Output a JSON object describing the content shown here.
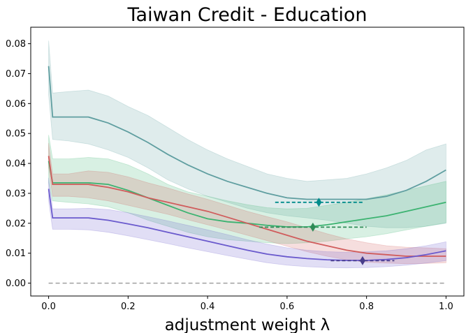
{
  "chart_data": {
    "type": "line",
    "title": "Taiwan Credit - Education",
    "xlabel": "adjustment weight λ",
    "ylabel": "",
    "xlim": [
      -0.045,
      1.045
    ],
    "ylim": [
      -0.0043,
      0.0855
    ],
    "xticks": [
      "0.0",
      "0.2",
      "0.4",
      "0.6",
      "0.8",
      "1.0"
    ],
    "xtick_values": [
      0.0,
      0.2,
      0.4,
      0.6,
      0.8,
      1.0
    ],
    "yticks": [
      "0.00",
      "0.01",
      "0.02",
      "0.03",
      "0.04",
      "0.05",
      "0.06",
      "0.07",
      "0.08"
    ],
    "ytick_values": [
      0.0,
      0.01,
      0.02,
      0.03,
      0.04,
      0.05,
      0.06,
      0.07,
      0.08
    ],
    "grid": false,
    "legend": "none",
    "x": [
      0.0,
      0.01,
      0.05,
      0.1,
      0.15,
      0.2,
      0.25,
      0.3,
      0.35,
      0.4,
      0.45,
      0.5,
      0.55,
      0.6,
      0.65,
      0.7,
      0.75,
      0.8,
      0.85,
      0.9,
      0.95,
      1.0
    ],
    "series": [
      {
        "color": "#5f9ea0",
        "values": [
          0.0725,
          0.0555,
          0.0555,
          0.0555,
          0.0535,
          0.0505,
          0.047,
          0.043,
          0.0395,
          0.0365,
          0.034,
          0.032,
          0.03,
          0.0285,
          0.028,
          0.028,
          0.028,
          0.028,
          0.029,
          0.031,
          0.034,
          0.0378
        ],
        "lower": [
          0.063,
          0.048,
          0.0475,
          0.0465,
          0.0445,
          0.042,
          0.0385,
          0.0345,
          0.0315,
          0.029,
          0.027,
          0.025,
          0.0235,
          0.0225,
          0.0218,
          0.021,
          0.02,
          0.019,
          0.0185,
          0.0185,
          0.019,
          0.02
        ],
        "upper": [
          0.081,
          0.0635,
          0.064,
          0.0645,
          0.0625,
          0.059,
          0.056,
          0.052,
          0.048,
          0.0445,
          0.0415,
          0.039,
          0.0365,
          0.035,
          0.034,
          0.0345,
          0.035,
          0.0365,
          0.0385,
          0.041,
          0.0445,
          0.0465
        ],
        "marker": {
          "x": 0.68,
          "y": 0.027,
          "x_start": 0.57,
          "x_end": 0.79
        }
      },
      {
        "color": "#3cb371",
        "values": [
          0.0408,
          0.0335,
          0.0335,
          0.0335,
          0.033,
          0.031,
          0.0285,
          0.026,
          0.0235,
          0.0215,
          0.0205,
          0.02,
          0.0193,
          0.0188,
          0.0188,
          0.0195,
          0.0205,
          0.0215,
          0.0225,
          0.024,
          0.0255,
          0.027
        ],
        "lower": [
          0.0335,
          0.0275,
          0.027,
          0.0265,
          0.0255,
          0.0235,
          0.021,
          0.019,
          0.017,
          0.0155,
          0.0145,
          0.014,
          0.0135,
          0.0132,
          0.0135,
          0.014,
          0.0148,
          0.0155,
          0.0165,
          0.0178,
          0.019,
          0.0202
        ],
        "upper": [
          0.0495,
          0.0415,
          0.0415,
          0.042,
          0.0415,
          0.0395,
          0.0365,
          0.033,
          0.0305,
          0.029,
          0.0275,
          0.0262,
          0.0252,
          0.0248,
          0.025,
          0.026,
          0.027,
          0.0282,
          0.0295,
          0.031,
          0.0325,
          0.034
        ],
        "marker": {
          "x": 0.665,
          "y": 0.0187,
          "x_start": 0.53,
          "x_end": 0.8
        }
      },
      {
        "color": "#d05c5c",
        "values": [
          0.0425,
          0.033,
          0.033,
          0.033,
          0.032,
          0.0305,
          0.0285,
          0.027,
          0.0255,
          0.024,
          0.022,
          0.02,
          0.018,
          0.016,
          0.014,
          0.0125,
          0.011,
          0.01,
          0.0095,
          0.009,
          0.009,
          0.009
        ],
        "lower": [
          0.0385,
          0.029,
          0.029,
          0.0285,
          0.0275,
          0.026,
          0.0245,
          0.023,
          0.0212,
          0.0195,
          0.0178,
          0.016,
          0.0142,
          0.0123,
          0.0105,
          0.009,
          0.0078,
          0.007,
          0.0067,
          0.0065,
          0.0066,
          0.0068
        ],
        "upper": [
          0.0468,
          0.0365,
          0.0365,
          0.0375,
          0.037,
          0.0355,
          0.0335,
          0.0318,
          0.0298,
          0.028,
          0.026,
          0.024,
          0.0222,
          0.0205,
          0.0185,
          0.0165,
          0.0148,
          0.0135,
          0.0125,
          0.012,
          0.0118,
          0.0115
        ]
      },
      {
        "color": "#6a5acd",
        "values": [
          0.0315,
          0.0218,
          0.0218,
          0.0218,
          0.021,
          0.0198,
          0.0185,
          0.017,
          0.0155,
          0.014,
          0.0125,
          0.011,
          0.0097,
          0.0088,
          0.0082,
          0.0078,
          0.0076,
          0.0076,
          0.0079,
          0.0085,
          0.0095,
          0.0108
        ],
        "lower": [
          0.0275,
          0.018,
          0.018,
          0.0178,
          0.017,
          0.0158,
          0.0145,
          0.0132,
          0.0118,
          0.0105,
          0.0092,
          0.008,
          0.0068,
          0.006,
          0.0055,
          0.0052,
          0.0051,
          0.0052,
          0.0055,
          0.006,
          0.0067,
          0.0075
        ],
        "upper": [
          0.0352,
          0.0248,
          0.0248,
          0.025,
          0.0246,
          0.0235,
          0.0222,
          0.0208,
          0.0193,
          0.0178,
          0.0162,
          0.0145,
          0.013,
          0.0118,
          0.011,
          0.0105,
          0.0103,
          0.0105,
          0.0108,
          0.0115,
          0.0125,
          0.0138
        ],
        "marker": {
          "x": 0.79,
          "y": 0.0075,
          "x_start": 0.71,
          "x_end": 0.87
        }
      }
    ],
    "reference_line": {
      "y": 0.0,
      "color": "#a0a0a0",
      "style": "dashed"
    }
  }
}
